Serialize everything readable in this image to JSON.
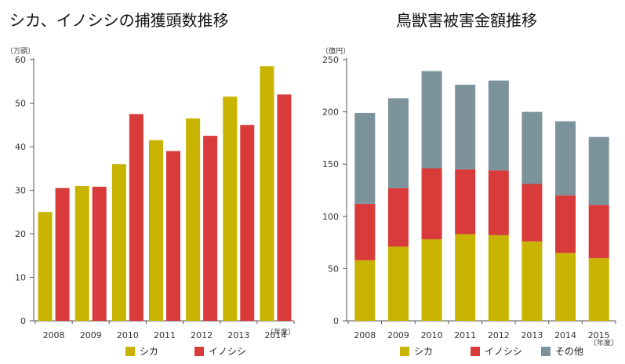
{
  "colors": {
    "shika": "#c8b400",
    "inoshishi": "#d93a3a",
    "other": "#7d939c"
  },
  "chart_data": [
    {
      "type": "bar",
      "title": "シカ、イノシシの捕獲頭数推移",
      "ylabel": "〔万頭〕",
      "xlabel": "〔年度〕",
      "ylim": [
        0,
        60
      ],
      "yticks": [
        0,
        10,
        20,
        30,
        40,
        50,
        60
      ],
      "categories": [
        "2008",
        "2009",
        "2010",
        "2011",
        "2012",
        "2013",
        "2014"
      ],
      "series": [
        {
          "name": "シカ",
          "color_key": "shika",
          "values": [
            25,
            31,
            36,
            41.5,
            46.5,
            51.5,
            58.5
          ]
        },
        {
          "name": "イノシシ",
          "color_key": "inoshishi",
          "values": [
            30.5,
            30.8,
            47.5,
            39,
            42.5,
            45,
            52
          ]
        }
      ]
    },
    {
      "type": "bar",
      "stacked": true,
      "title": "鳥獣害被害金額推移",
      "ylabel": "〔億円〕",
      "xlabel": "〔年度〕",
      "ylim": [
        0,
        250
      ],
      "yticks": [
        0,
        50,
        100,
        150,
        200,
        250
      ],
      "categories": [
        "2008",
        "2009",
        "2010",
        "2011",
        "2012",
        "2013",
        "2014",
        "2015"
      ],
      "series": [
        {
          "name": "シカ",
          "color_key": "shika",
          "values": [
            58,
            71,
            78,
            83,
            82,
            76,
            65,
            60
          ]
        },
        {
          "name": "イノシシ",
          "color_key": "inoshishi",
          "values": [
            54,
            56,
            68,
            62,
            62,
            55,
            55,
            51
          ]
        },
        {
          "name": "その他",
          "color_key": "other",
          "values": [
            87,
            86,
            93,
            81,
            86,
            69,
            71,
            65
          ]
        }
      ]
    }
  ]
}
